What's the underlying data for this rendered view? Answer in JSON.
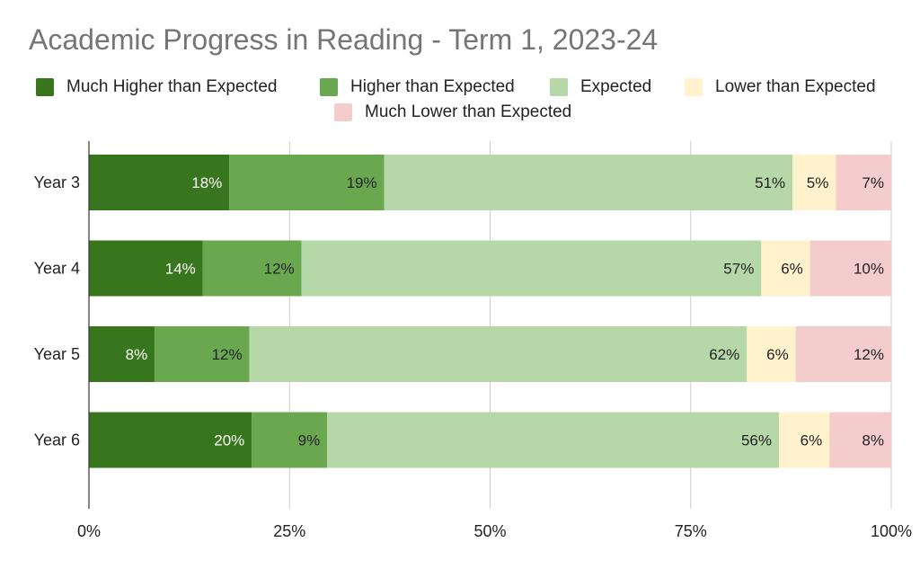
{
  "chart_data": {
    "type": "bar",
    "orientation": "horizontal",
    "stacked": true,
    "percent_stacked": true,
    "title": "Academic Progress in Reading - Term 1, 2023-24",
    "categories": [
      "Year 3",
      "Year 4",
      "Year 5",
      "Year 6"
    ],
    "series": [
      {
        "name": "Much Higher than Expected",
        "color": "#38761d",
        "values": [
          17.5,
          14.2,
          8.2,
          20.3
        ],
        "labels": [
          "18%",
          "14%",
          "8%",
          "20%"
        ]
      },
      {
        "name": "Higher than Expected",
        "color": "#6aa84f",
        "values": [
          19.3,
          12.3,
          11.8,
          9.4
        ],
        "labels": [
          "19%",
          "12%",
          "12%",
          "9%"
        ]
      },
      {
        "name": "Expected",
        "color": "#b6d7a8",
        "values": [
          50.9,
          57.3,
          62.0,
          56.3
        ],
        "labels": [
          "51%",
          "57%",
          "62%",
          "56%"
        ]
      },
      {
        "name": "Lower than Expected",
        "color": "#fff2cc",
        "values": [
          5.4,
          6.1,
          6.1,
          6.3
        ],
        "labels": [
          "5%",
          "6%",
          "6%",
          "6%"
        ]
      },
      {
        "name": "Much Lower than Expected",
        "color": "#f4cccc",
        "values": [
          6.9,
          10.1,
          11.9,
          7.7
        ],
        "labels": [
          "7%",
          "10%",
          "12%",
          "8%"
        ]
      }
    ],
    "x_ticks": [
      "0%",
      "25%",
      "50%",
      "75%",
      "100%"
    ],
    "xlim": [
      0,
      100
    ],
    "grid": true,
    "legend_position": "top"
  }
}
